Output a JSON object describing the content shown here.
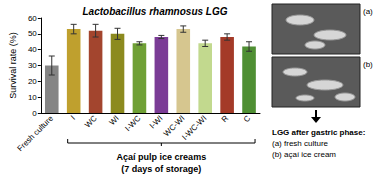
{
  "chart_data": {
    "type": "bar",
    "title": "Lactobacillus rhamnosus LGG",
    "y_label": "Survival rate (%)",
    "categories": [
      "Fresh culture",
      "I",
      "WC",
      "WI",
      "I-WC",
      "I-WI",
      "WC-WI",
      "I-WC-WI",
      "R",
      "C"
    ],
    "values": [
      30,
      53,
      52,
      50,
      44,
      48,
      53,
      44,
      48,
      42
    ],
    "errors": [
      6,
      3,
      4,
      3.5,
      1,
      1,
      2,
      2,
      2,
      3
    ],
    "colors": [
      "#858585",
      "#bfa02e",
      "#a3452e",
      "#8c8a1e",
      "#6fa035",
      "#7b3c96",
      "#d6c68f",
      "#c2d98e",
      "#a43a28",
      "#4f8f33"
    ],
    "ylim": [
      0,
      60
    ],
    "yticks": [
      0,
      10,
      20,
      30,
      40,
      50,
      60
    ],
    "grid": false,
    "annotations": {
      "group_label": "Açaí pulp ice creams",
      "group_sublabel": "(7 days of storage)",
      "panels": [
        "(a)",
        "(b)"
      ],
      "caption": [
        "LGG after gastric phase:",
        "(a) fresh culture",
        "(b) açaí ice cream"
      ]
    }
  }
}
